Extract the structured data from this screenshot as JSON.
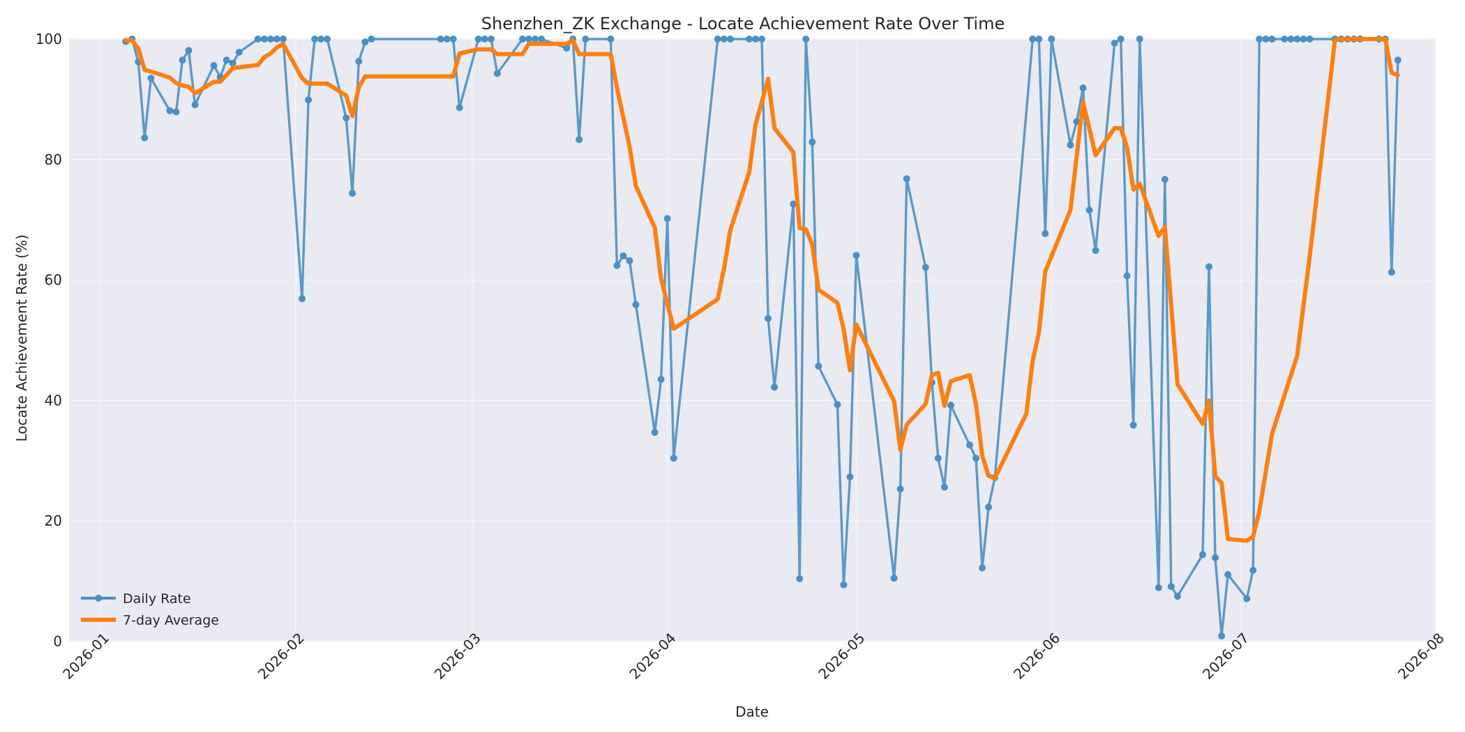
{
  "chart_data": {
    "type": "line",
    "title": "Shenzhen_ZK Exchange - Locate Achievement Rate Over Time",
    "xlabel": "Date",
    "ylabel": "Locate Achievement Rate (%)",
    "xlim": [
      "2025-12-27",
      "2026-08-01"
    ],
    "ylim": [
      0,
      100
    ],
    "x_ticks": [
      "2026-01-01",
      "2026-02-01",
      "2026-03-01",
      "2026-04-01",
      "2026-05-01",
      "2026-06-01",
      "2026-07-01",
      "2026-08-01"
    ],
    "x_tick_labels": [
      "2026-01",
      "2026-02",
      "2026-03",
      "2026-04",
      "2026-05",
      "2026-06",
      "2026-07",
      "2026-08"
    ],
    "y_ticks": [
      0,
      20,
      40,
      60,
      80,
      100
    ],
    "y_tick_labels": [
      "0",
      "20",
      "40",
      "60",
      "80",
      "100"
    ],
    "grid": true,
    "legend_position": "lower-left",
    "background_color": "#eaeaf2",
    "series": [
      {
        "name": "Daily Rate",
        "color": "#4a90c4",
        "marker": "circle",
        "points": [
          [
            "2026-01-05",
            99.6
          ],
          [
            "2026-01-06",
            100
          ],
          [
            "2026-01-07",
            96.2
          ],
          [
            "2026-01-08",
            83.6
          ],
          [
            "2026-01-09",
            93.5
          ],
          [
            "2026-01-12",
            88.1
          ],
          [
            "2026-01-13",
            87.9
          ],
          [
            "2026-01-14",
            96.5
          ],
          [
            "2026-01-15",
            98.1
          ],
          [
            "2026-01-16",
            89.1
          ],
          [
            "2026-01-19",
            95.6
          ],
          [
            "2026-01-20",
            93.7
          ],
          [
            "2026-01-21",
            96.5
          ],
          [
            "2026-01-22",
            96.0
          ],
          [
            "2026-01-23",
            97.8
          ],
          [
            "2026-01-26",
            100
          ],
          [
            "2026-01-27",
            100
          ],
          [
            "2026-01-28",
            100
          ],
          [
            "2026-01-29",
            100
          ],
          [
            "2026-01-30",
            100
          ],
          [
            "2026-02-02",
            56.9
          ],
          [
            "2026-02-03",
            89.9
          ],
          [
            "2026-02-04",
            100
          ],
          [
            "2026-02-05",
            100
          ],
          [
            "2026-02-06",
            100
          ],
          [
            "2026-02-09",
            86.9
          ],
          [
            "2026-02-10",
            74.4
          ],
          [
            "2026-02-11",
            96.3
          ],
          [
            "2026-02-12",
            99.5
          ],
          [
            "2026-02-13",
            100
          ],
          [
            "2026-02-24",
            100
          ],
          [
            "2026-02-25",
            100
          ],
          [
            "2026-02-26",
            100
          ],
          [
            "2026-02-27",
            88.6
          ],
          [
            "2026-03-02",
            100
          ],
          [
            "2026-03-03",
            100
          ],
          [
            "2026-03-04",
            100
          ],
          [
            "2026-03-05",
            94.3
          ],
          [
            "2026-03-09",
            100
          ],
          [
            "2026-03-10",
            100
          ],
          [
            "2026-03-11",
            100
          ],
          [
            "2026-03-12",
            100
          ],
          [
            "2026-03-16",
            98.5
          ],
          [
            "2026-03-17",
            100
          ],
          [
            "2026-03-18",
            83.3
          ],
          [
            "2026-03-19",
            100
          ],
          [
            "2026-03-23",
            100
          ],
          [
            "2026-03-24",
            62.4
          ],
          [
            "2026-03-25",
            64.0
          ],
          [
            "2026-03-26",
            63.2
          ],
          [
            "2026-03-27",
            55.9
          ],
          [
            "2026-03-30",
            34.7
          ],
          [
            "2026-03-31",
            43.5
          ],
          [
            "2026-04-01",
            70.2
          ],
          [
            "2026-04-02",
            30.4
          ],
          [
            "2026-04-09",
            100
          ],
          [
            "2026-04-10",
            100
          ],
          [
            "2026-04-11",
            100
          ],
          [
            "2026-04-14",
            100
          ],
          [
            "2026-04-15",
            100
          ],
          [
            "2026-04-16",
            100
          ],
          [
            "2026-04-17",
            53.6
          ],
          [
            "2026-04-18",
            42.2
          ],
          [
            "2026-04-21",
            72.6
          ],
          [
            "2026-04-22",
            10.4
          ],
          [
            "2026-04-23",
            100
          ],
          [
            "2026-04-24",
            82.9
          ],
          [
            "2026-04-25",
            45.7
          ],
          [
            "2026-04-28",
            39.3
          ],
          [
            "2026-04-29",
            9.4
          ],
          [
            "2026-04-30",
            27.3
          ],
          [
            "2026-05-01",
            64.1
          ],
          [
            "2026-05-07",
            10.5
          ],
          [
            "2026-05-08",
            25.3
          ],
          [
            "2026-05-09",
            76.8
          ],
          [
            "2026-05-12",
            62.1
          ],
          [
            "2026-05-13",
            43.0
          ],
          [
            "2026-05-14",
            30.4
          ],
          [
            "2026-05-15",
            25.6
          ],
          [
            "2026-05-16",
            39.2
          ],
          [
            "2026-05-19",
            32.6
          ],
          [
            "2026-05-20",
            30.4
          ],
          [
            "2026-05-21",
            12.2
          ],
          [
            "2026-05-22",
            22.3
          ],
          [
            "2026-05-23",
            27.2
          ],
          [
            "2026-05-29",
            100
          ],
          [
            "2026-05-30",
            100
          ],
          [
            "2026-05-31",
            67.7
          ],
          [
            "2026-06-01",
            100
          ],
          [
            "2026-06-04",
            82.4
          ],
          [
            "2026-06-05",
            86.3
          ],
          [
            "2026-06-06",
            91.9
          ],
          [
            "2026-06-07",
            71.6
          ],
          [
            "2026-06-08",
            64.9
          ],
          [
            "2026-06-11",
            99.3
          ],
          [
            "2026-06-12",
            100
          ],
          [
            "2026-06-13",
            60.7
          ],
          [
            "2026-06-14",
            35.9
          ],
          [
            "2026-06-15",
            100
          ],
          [
            "2026-06-18",
            8.9
          ],
          [
            "2026-06-19",
            76.7
          ],
          [
            "2026-06-20",
            9.1
          ],
          [
            "2026-06-21",
            7.5
          ],
          [
            "2026-06-25",
            14.4
          ],
          [
            "2026-06-26",
            62.2
          ],
          [
            "2026-06-27",
            13.9
          ],
          [
            "2026-06-28",
            0.9
          ],
          [
            "2026-06-29",
            11.1
          ],
          [
            "2026-07-02",
            7.1
          ],
          [
            "2026-07-03",
            11.8
          ],
          [
            "2026-07-04",
            100
          ],
          [
            "2026-07-05",
            100
          ],
          [
            "2026-07-06",
            100
          ],
          [
            "2026-07-08",
            100
          ],
          [
            "2026-07-09",
            100
          ],
          [
            "2026-07-10",
            100
          ],
          [
            "2026-07-11",
            100
          ],
          [
            "2026-07-12",
            100
          ],
          [
            "2026-07-16",
            100
          ],
          [
            "2026-07-17",
            100
          ],
          [
            "2026-07-18",
            100
          ],
          [
            "2026-07-19",
            100
          ],
          [
            "2026-07-20",
            100
          ],
          [
            "2026-07-23",
            100
          ],
          [
            "2026-07-24",
            100
          ],
          [
            "2026-07-25",
            61.3
          ],
          [
            "2026-07-26",
            96.5
          ]
        ]
      },
      {
        "name": "7-day Average",
        "color": "#ff7f0e",
        "marker": "none",
        "points": [
          [
            "2026-01-05",
            99.8
          ],
          [
            "2026-01-06",
            99.8
          ],
          [
            "2026-01-07",
            98.4
          ],
          [
            "2026-01-08",
            94.9
          ],
          [
            "2026-01-09",
            94.6
          ],
          [
            "2026-01-12",
            93.6
          ],
          [
            "2026-01-13",
            92.7
          ],
          [
            "2026-01-14",
            92.3
          ],
          [
            "2026-01-15",
            92.1
          ],
          [
            "2026-01-16",
            91.0
          ],
          [
            "2026-01-19",
            92.9
          ],
          [
            "2026-01-20",
            92.9
          ],
          [
            "2026-01-21",
            94.0
          ],
          [
            "2026-01-22",
            95.2
          ],
          [
            "2026-01-23",
            95.3
          ],
          [
            "2026-01-26",
            95.7
          ],
          [
            "2026-01-27",
            97.0
          ],
          [
            "2026-01-28",
            97.6
          ],
          [
            "2026-01-29",
            98.6
          ],
          [
            "2026-01-30",
            99.2
          ],
          [
            "2026-02-02",
            93.5
          ],
          [
            "2026-02-03",
            92.6
          ],
          [
            "2026-02-04",
            92.6
          ],
          [
            "2026-02-05",
            92.6
          ],
          [
            "2026-02-06",
            92.6
          ],
          [
            "2026-02-09",
            90.6
          ],
          [
            "2026-02-10",
            87.2
          ],
          [
            "2026-02-11",
            92.0
          ],
          [
            "2026-02-12",
            93.8
          ],
          [
            "2026-02-13",
            93.8
          ],
          [
            "2026-02-24",
            93.8
          ],
          [
            "2026-02-25",
            93.8
          ],
          [
            "2026-02-26",
            93.8
          ],
          [
            "2026-02-27",
            97.6
          ],
          [
            "2026-03-02",
            98.3
          ],
          [
            "2026-03-03",
            98.3
          ],
          [
            "2026-03-04",
            98.3
          ],
          [
            "2026-03-05",
            97.5
          ],
          [
            "2026-03-09",
            97.5
          ],
          [
            "2026-03-10",
            99.2
          ],
          [
            "2026-03-11",
            99.2
          ],
          [
            "2026-03-12",
            99.2
          ],
          [
            "2026-03-16",
            99.2
          ],
          [
            "2026-03-17",
            99.8
          ],
          [
            "2026-03-18",
            97.5
          ],
          [
            "2026-03-19",
            97.5
          ],
          [
            "2026-03-23",
            97.5
          ],
          [
            "2026-03-24",
            91.9
          ],
          [
            "2026-03-26",
            82.1
          ],
          [
            "2026-03-27",
            75.6
          ],
          [
            "2026-03-30",
            68.7
          ],
          [
            "2026-03-31",
            60.2
          ],
          [
            "2026-04-02",
            51.9
          ],
          [
            "2026-04-09",
            56.8
          ],
          [
            "2026-04-10",
            61.9
          ],
          [
            "2026-04-11",
            68.3
          ],
          [
            "2026-04-14",
            77.9
          ],
          [
            "2026-04-15",
            85.8
          ],
          [
            "2026-04-17",
            93.4
          ],
          [
            "2026-04-18",
            85.2
          ],
          [
            "2026-04-21",
            81.2
          ],
          [
            "2026-04-22",
            68.6
          ],
          [
            "2026-04-23",
            68.4
          ],
          [
            "2026-04-24",
            65.9
          ],
          [
            "2026-04-25",
            58.4
          ],
          [
            "2026-04-28",
            56.2
          ],
          [
            "2026-04-29",
            51.8
          ],
          [
            "2026-04-30",
            45.0
          ],
          [
            "2026-05-01",
            52.6
          ],
          [
            "2026-05-07",
            39.9
          ],
          [
            "2026-05-08",
            31.8
          ],
          [
            "2026-05-09",
            36.0
          ],
          [
            "2026-05-12",
            39.4
          ],
          [
            "2026-05-13",
            44.2
          ],
          [
            "2026-05-14",
            44.6
          ],
          [
            "2026-05-15",
            39.1
          ],
          [
            "2026-05-16",
            43.2
          ],
          [
            "2026-05-19",
            44.2
          ],
          [
            "2026-05-20",
            39.4
          ],
          [
            "2026-05-21",
            30.8
          ],
          [
            "2026-05-22",
            27.5
          ],
          [
            "2026-05-23",
            27.1
          ],
          [
            "2026-05-28",
            37.8
          ],
          [
            "2026-05-29",
            46.5
          ],
          [
            "2026-05-30",
            51.3
          ],
          [
            "2026-05-31",
            61.4
          ],
          [
            "2026-06-04",
            71.6
          ],
          [
            "2026-06-06",
            89.6
          ],
          [
            "2026-06-08",
            80.7
          ],
          [
            "2026-06-11",
            85.2
          ],
          [
            "2026-06-12",
            85.2
          ],
          [
            "2026-06-13",
            82.0
          ],
          [
            "2026-06-14",
            75.0
          ],
          [
            "2026-06-15",
            76.0
          ],
          [
            "2026-06-18",
            67.3
          ],
          [
            "2026-06-19",
            68.8
          ],
          [
            "2026-06-21",
            42.7
          ],
          [
            "2026-06-25",
            36.1
          ],
          [
            "2026-06-26",
            40.0
          ],
          [
            "2026-06-27",
            27.4
          ],
          [
            "2026-06-28",
            26.3
          ],
          [
            "2026-06-29",
            17.0
          ],
          [
            "2026-07-02",
            16.7
          ],
          [
            "2026-07-03",
            17.4
          ],
          [
            "2026-07-04",
            21.6
          ],
          [
            "2026-07-06",
            34.4
          ],
          [
            "2026-07-10",
            47.4
          ],
          [
            "2026-07-12",
            63.9
          ],
          [
            "2026-07-16",
            99.8
          ],
          [
            "2026-07-17",
            100
          ],
          [
            "2026-07-18",
            100
          ],
          [
            "2026-07-19",
            100
          ],
          [
            "2026-07-20",
            100
          ],
          [
            "2026-07-23",
            100
          ],
          [
            "2026-07-24",
            100
          ],
          [
            "2026-07-25",
            94.4
          ],
          [
            "2026-07-26",
            94.0
          ]
        ]
      }
    ]
  }
}
